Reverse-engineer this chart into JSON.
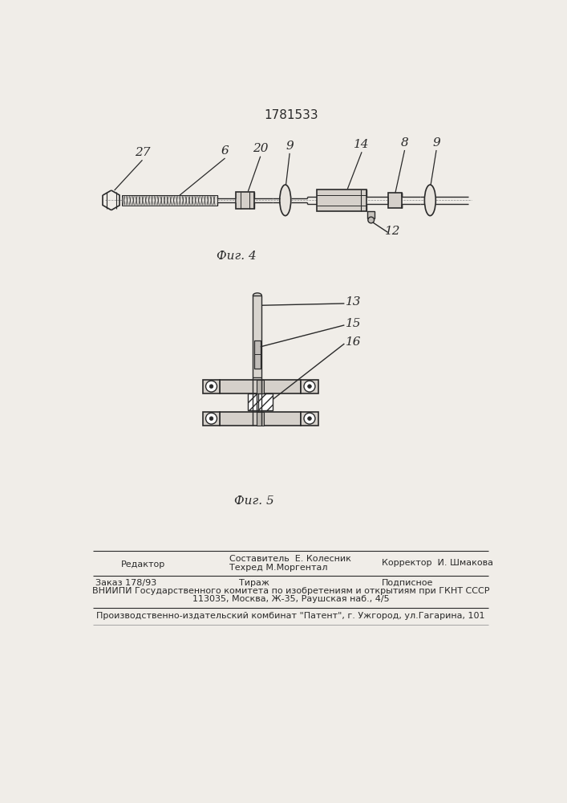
{
  "patent_number": "1781533",
  "fig4_caption": "Фиг. 4",
  "fig5_caption": "Фиг. 5",
  "bg_color": "#f0ede8",
  "line_color": "#2a2a2a",
  "footer": {
    "editor_label": "Редактор",
    "compiler": "Составитель  Е. Колесник",
    "techred": "Техред М.Моргентал",
    "corrector": "Корректор  И. Шмакова",
    "order": "Заказ 178/93",
    "tirazh": "Тираж",
    "podpisnoe": "Подписное",
    "vniiipi": "ВНИИПИ Государственного комитета по изобретениям и открытиям при ГКНТ СССР",
    "address": "113035, Москва, Ж-35, Раушская наб., 4/5",
    "publisher": "Производственно-издательский комбинат \"Патент\", г. Ужгород, ул.Гагарина, 101"
  }
}
